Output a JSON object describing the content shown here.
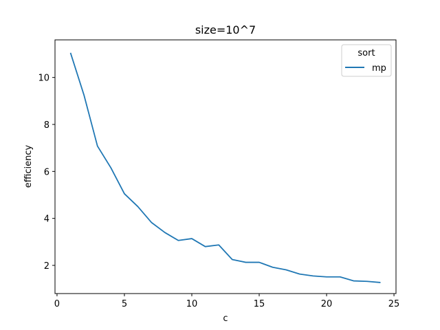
{
  "chart_data": {
    "type": "line",
    "title": "size=10^7",
    "xlabel": "c",
    "ylabel": "efficiency",
    "xlim": [
      -0.15,
      25.15
    ],
    "ylim": [
      0.8,
      11.6
    ],
    "xticks": [
      0,
      5,
      10,
      15,
      20,
      25
    ],
    "yticks": [
      2,
      4,
      6,
      8,
      10
    ],
    "grid": false,
    "legend": {
      "title": "sort",
      "placement": "top-right"
    },
    "series": [
      {
        "name": "mp",
        "color": "#1f77b4",
        "x": [
          1,
          2,
          3,
          4,
          5,
          6,
          7,
          8,
          9,
          10,
          11,
          12,
          13,
          14,
          15,
          16,
          17,
          18,
          19,
          20,
          21,
          22,
          23,
          24
        ],
        "y": [
          11.05,
          9.25,
          7.08,
          6.15,
          5.05,
          4.5,
          3.83,
          3.4,
          3.06,
          3.14,
          2.8,
          2.87,
          2.25,
          2.13,
          2.13,
          1.92,
          1.81,
          1.63,
          1.55,
          1.51,
          1.51,
          1.34,
          1.32,
          1.27
        ]
      }
    ]
  }
}
